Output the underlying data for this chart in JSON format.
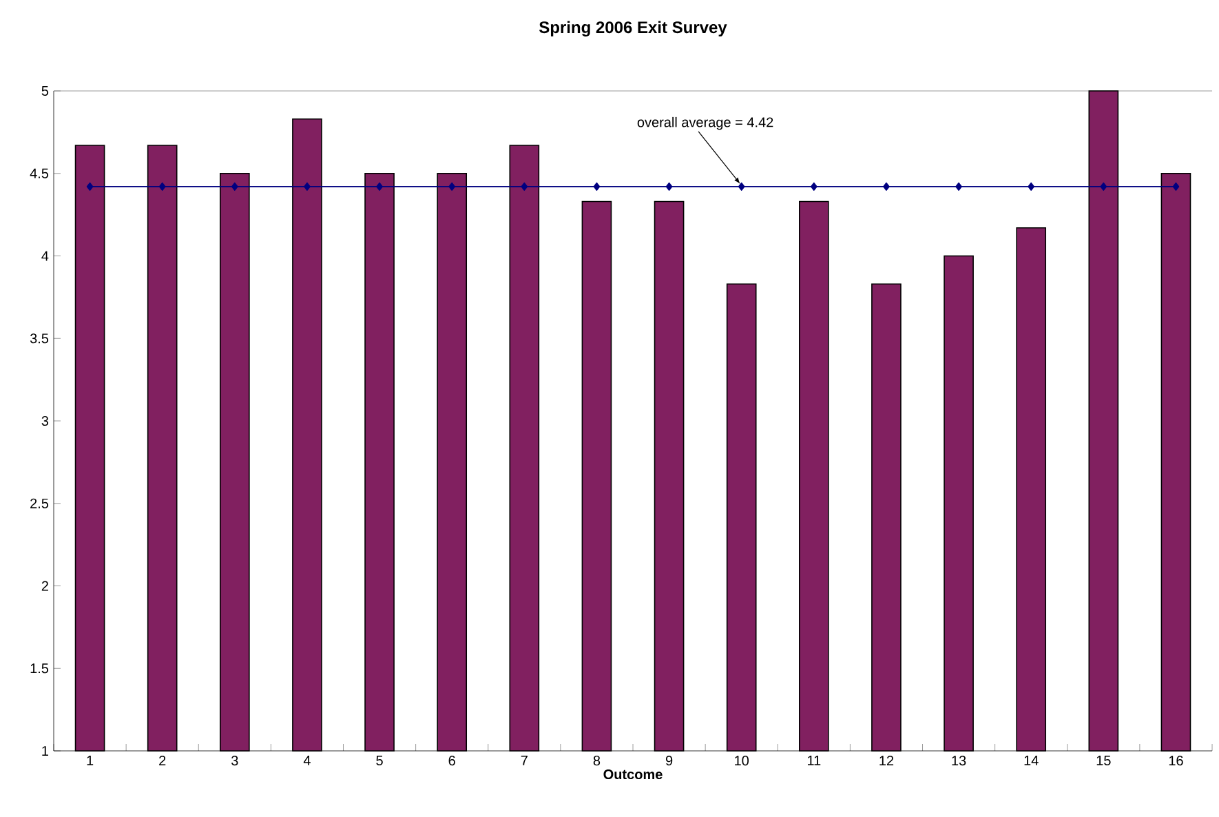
{
  "chart_data": {
    "type": "bar",
    "title": "Spring 2006 Exit Survey",
    "xlabel": "Outcome",
    "categories": [
      "1",
      "2",
      "3",
      "4",
      "5",
      "6",
      "7",
      "8",
      "9",
      "10",
      "11",
      "12",
      "13",
      "14",
      "15",
      "16"
    ],
    "series": [
      {
        "color": "#812060",
        "values": [
          4.67,
          4.67,
          4.5,
          4.83,
          4.5,
          4.5,
          4.67,
          4.33,
          4.33,
          3.83,
          4.33,
          3.83,
          4.0,
          4.17,
          5.0,
          4.5
        ]
      },
      {
        "type": "line",
        "color": "#000080",
        "values": [
          4.42,
          4.42,
          4.42,
          4.42,
          4.42,
          4.42,
          4.42,
          4.42,
          4.42,
          4.42,
          4.42,
          4.42,
          4.42,
          4.42,
          4.42,
          4.42
        ]
      }
    ],
    "marker": "diamond",
    "line_style": "solid",
    "ylim": [
      1,
      5
    ],
    "yticks": [
      1,
      1.5,
      2,
      2.5,
      3,
      3.5,
      4,
      4.5,
      5
    ],
    "annotations": [
      {
        "text": "overall average = 4.42",
        "x": "10",
        "y": 4.42
      }
    ]
  }
}
